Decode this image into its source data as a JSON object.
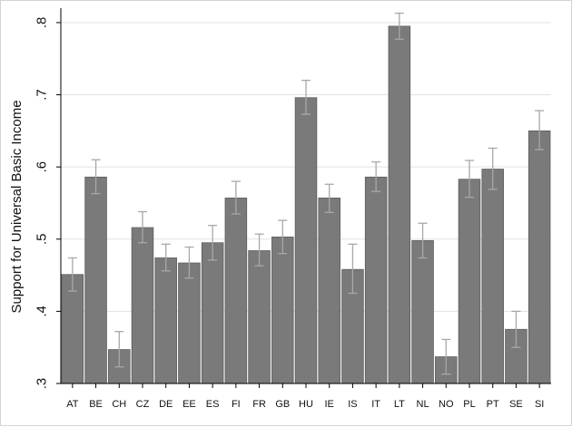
{
  "chart_data": {
    "type": "bar",
    "title": "",
    "xlabel": "",
    "ylabel": "Support for Universal Basic Income",
    "ylim": [
      0.3,
      0.82
    ],
    "yticks": [
      0.3,
      0.4,
      0.5,
      0.6,
      0.7,
      0.8
    ],
    "ytick_labels": [
      ".3",
      ".4",
      ".5",
      ".6",
      ".7",
      ".8"
    ],
    "grid": true,
    "bar_color": "#7a7a7a",
    "errorbar_color": "#a8a8a8",
    "categories": [
      "AT",
      "BE",
      "CH",
      "CZ",
      "DE",
      "EE",
      "ES",
      "FI",
      "FR",
      "GB",
      "HU",
      "IE",
      "IS",
      "IT",
      "LT",
      "NL",
      "NO",
      "PL",
      "PT",
      "SE",
      "SI"
    ],
    "values": [
      0.451,
      0.586,
      0.347,
      0.516,
      0.474,
      0.467,
      0.495,
      0.557,
      0.484,
      0.503,
      0.696,
      0.557,
      0.458,
      0.586,
      0.795,
      0.498,
      0.337,
      0.583,
      0.597,
      0.375,
      0.65
    ],
    "ci_low": [
      0.428,
      0.563,
      0.323,
      0.495,
      0.456,
      0.446,
      0.471,
      0.535,
      0.463,
      0.48,
      0.673,
      0.537,
      0.425,
      0.566,
      0.777,
      0.474,
      0.313,
      0.558,
      0.569,
      0.35,
      0.624
    ],
    "ci_high": [
      0.474,
      0.61,
      0.372,
      0.538,
      0.493,
      0.489,
      0.519,
      0.58,
      0.507,
      0.526,
      0.72,
      0.576,
      0.493,
      0.607,
      0.813,
      0.522,
      0.361,
      0.609,
      0.626,
      0.4,
      0.678
    ]
  }
}
